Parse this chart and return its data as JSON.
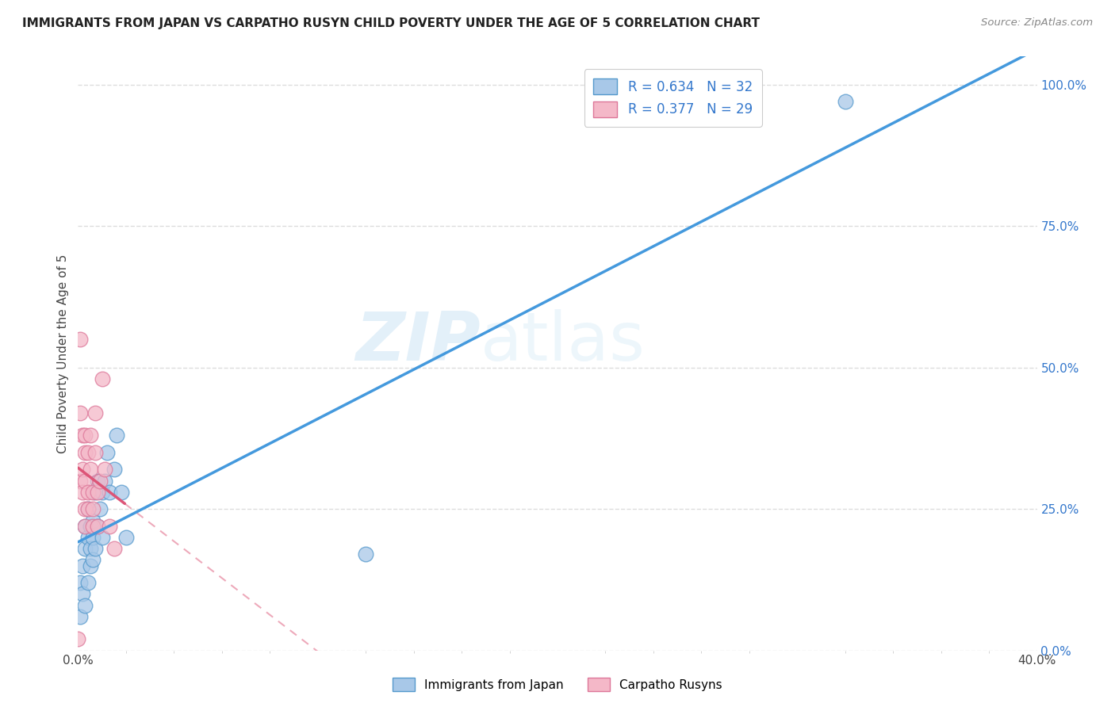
{
  "title": "IMMIGRANTS FROM JAPAN VS CARPATHO RUSYN CHILD POVERTY UNDER THE AGE OF 5 CORRELATION CHART",
  "source": "Source: ZipAtlas.com",
  "ylabel": "Child Poverty Under the Age of 5",
  "ylabel_right_ticks": [
    "100.0%",
    "75.0%",
    "50.0%",
    "25.0%",
    "0.0%"
  ],
  "ylabel_right_vals": [
    1.0,
    0.75,
    0.5,
    0.25,
    0.0
  ],
  "legend_label1": "Immigrants from Japan",
  "legend_label2": "Carpatho Rusyns",
  "r1": "0.634",
  "n1": "32",
  "r2": "0.377",
  "n2": "29",
  "color_blue_fill": "#a8c8e8",
  "color_pink_fill": "#f4b8c8",
  "color_blue_edge": "#5599cc",
  "color_pink_edge": "#dd7799",
  "color_blue_line": "#4499dd",
  "color_pink_line": "#dd5577",
  "color_r_val": "#3377cc",
  "color_n_val": "#3399ee",
  "watermark_zip": "ZIP",
  "watermark_atlas": "atlas",
  "blue_scatter_x": [
    0.001,
    0.001,
    0.002,
    0.002,
    0.003,
    0.003,
    0.003,
    0.004,
    0.004,
    0.004,
    0.005,
    0.005,
    0.005,
    0.006,
    0.006,
    0.006,
    0.007,
    0.007,
    0.008,
    0.008,
    0.009,
    0.01,
    0.01,
    0.011,
    0.012,
    0.013,
    0.015,
    0.016,
    0.018,
    0.02,
    0.12,
    0.32
  ],
  "blue_scatter_y": [
    0.06,
    0.12,
    0.1,
    0.15,
    0.08,
    0.18,
    0.22,
    0.12,
    0.2,
    0.25,
    0.15,
    0.18,
    0.22,
    0.16,
    0.2,
    0.23,
    0.18,
    0.28,
    0.22,
    0.3,
    0.25,
    0.2,
    0.28,
    0.3,
    0.35,
    0.28,
    0.32,
    0.38,
    0.28,
    0.2,
    0.17,
    0.97
  ],
  "pink_scatter_x": [
    0.0,
    0.001,
    0.001,
    0.001,
    0.002,
    0.002,
    0.002,
    0.003,
    0.003,
    0.003,
    0.003,
    0.003,
    0.004,
    0.004,
    0.004,
    0.005,
    0.005,
    0.006,
    0.006,
    0.006,
    0.007,
    0.007,
    0.008,
    0.008,
    0.009,
    0.01,
    0.011,
    0.013,
    0.015
  ],
  "pink_scatter_y": [
    0.02,
    0.55,
    0.42,
    0.3,
    0.38,
    0.32,
    0.28,
    0.38,
    0.35,
    0.3,
    0.25,
    0.22,
    0.35,
    0.28,
    0.25,
    0.38,
    0.32,
    0.28,
    0.25,
    0.22,
    0.42,
    0.35,
    0.28,
    0.22,
    0.3,
    0.48,
    0.32,
    0.22,
    0.18
  ],
  "xmin": 0.0,
  "xmax": 0.4,
  "ymin": 0.0,
  "ymax": 1.05,
  "grid_color": "#dddddd",
  "background_color": "#ffffff"
}
